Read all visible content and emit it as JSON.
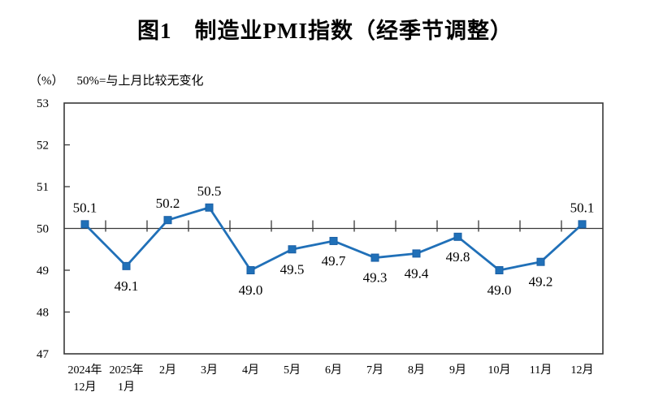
{
  "chart_data": {
    "type": "line",
    "title": "图1　制造业PMI指数（经季节调整）",
    "unit_label": "（%）",
    "note": "50%=与上月比较无变化",
    "categories": [
      [
        "2024年",
        "12月"
      ],
      [
        "2025年",
        "1月"
      ],
      [
        "2月"
      ],
      [
        "3月"
      ],
      [
        "4月"
      ],
      [
        "5月"
      ],
      [
        "6月"
      ],
      [
        "7月"
      ],
      [
        "8月"
      ],
      [
        "9月"
      ],
      [
        "10月"
      ],
      [
        "11月"
      ],
      [
        "12月"
      ]
    ],
    "series": [
      {
        "name": "制造业PMI指数",
        "values": [
          50.1,
          49.1,
          50.2,
          50.5,
          49.0,
          49.5,
          49.7,
          49.3,
          49.4,
          49.8,
          49.0,
          49.2,
          50.1
        ],
        "label_positions": [
          "above",
          "below",
          "above",
          "above",
          "below",
          "below",
          "below",
          "below",
          "below",
          "below",
          "below",
          "below",
          "above"
        ]
      }
    ],
    "ylabel": "%",
    "ylim": [
      47,
      53
    ],
    "y_ticks": [
      47,
      48,
      49,
      50,
      51,
      52,
      53
    ],
    "reference_line": 50,
    "grid": "off",
    "legend": "none",
    "marker": "square",
    "colors": {
      "series": "#2070b8",
      "marker_edge": "#1a5fa5",
      "axis": "#383838",
      "text": "#000000",
      "background": "#ffffff"
    }
  }
}
